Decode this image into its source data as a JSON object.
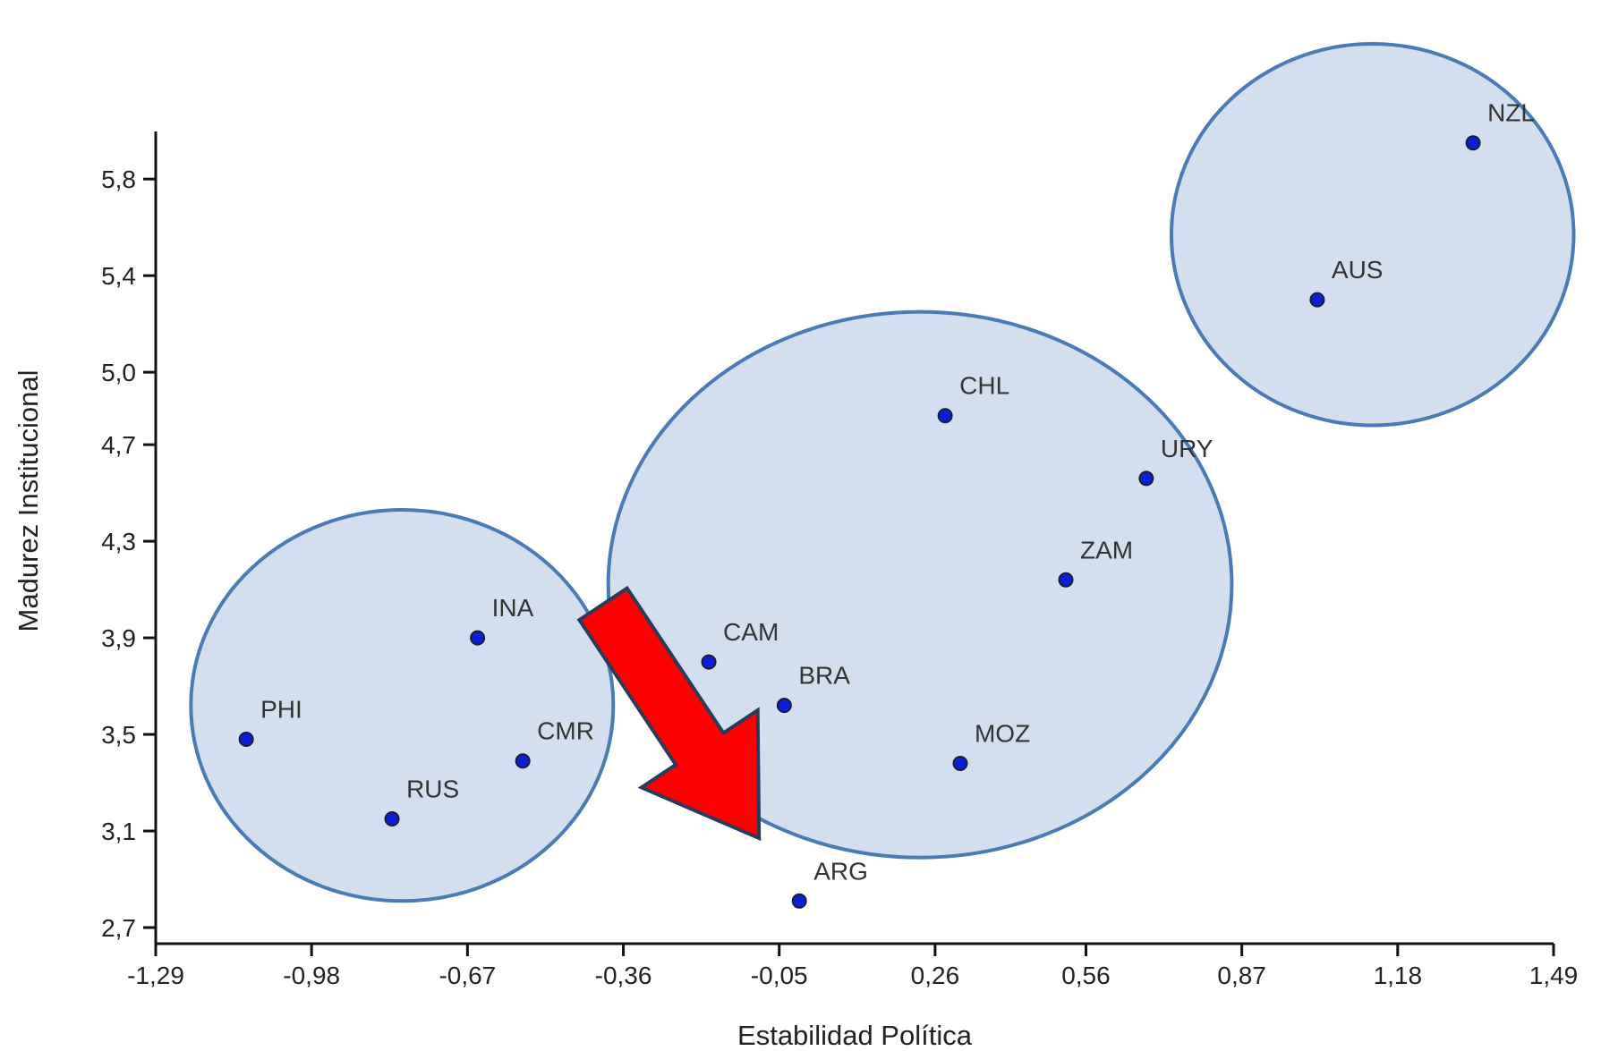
{
  "chart_data": {
    "type": "scatter",
    "xlabel": "Estabilidad Política",
    "ylabel": "Madurez Institucional",
    "xlim": [
      -1.29,
      1.49
    ],
    "ylim": [
      2.7,
      5.96
    ],
    "x_ticks": [
      "-1,29",
      "-0,98",
      "-0,67",
      "-0,36",
      "-0,05",
      "0,26",
      "0,56",
      "0,87",
      "1,18",
      "1,49"
    ],
    "x_tick_values": [
      -1.29,
      -0.98,
      -0.67,
      -0.36,
      -0.05,
      0.26,
      0.56,
      0.87,
      1.18,
      1.49
    ],
    "y_ticks": [
      "2,7",
      "3,1",
      "3,5",
      "3,9",
      "4,3",
      "4,7",
      "5,0",
      "5,4",
      "5,8"
    ],
    "y_tick_values": [
      2.7,
      3.1,
      3.5,
      3.9,
      4.3,
      4.7,
      5.0,
      5.4,
      5.8
    ],
    "grid": false,
    "points": [
      {
        "label": "NZL",
        "x": 1.33,
        "y": 5.95
      },
      {
        "label": "AUS",
        "x": 1.02,
        "y": 5.3
      },
      {
        "label": "CHL",
        "x": 0.28,
        "y": 4.82
      },
      {
        "label": "URY",
        "x": 0.68,
        "y": 4.56
      },
      {
        "label": "ZAM",
        "x": 0.52,
        "y": 4.14
      },
      {
        "label": "INA",
        "x": -0.65,
        "y": 3.9
      },
      {
        "label": "CAM",
        "x": -0.19,
        "y": 3.8
      },
      {
        "label": "BRA",
        "x": -0.04,
        "y": 3.62
      },
      {
        "label": "PHI",
        "x": -1.11,
        "y": 3.48
      },
      {
        "label": "CMR",
        "x": -0.56,
        "y": 3.39
      },
      {
        "label": "MOZ",
        "x": 0.31,
        "y": 3.38
      },
      {
        "label": "RUS",
        "x": -0.82,
        "y": 3.15
      },
      {
        "label": "ARG",
        "x": -0.01,
        "y": 2.81
      }
    ],
    "clusters": [
      {
        "members": [
          "NZL",
          "AUS"
        ],
        "cx": 1.13,
        "cy": 5.57,
        "rx": 0.4,
        "ry": 0.79
      },
      {
        "members": [
          "CHL",
          "URY",
          "ZAM",
          "CAM",
          "BRA",
          "MOZ"
        ],
        "cx": 0.23,
        "cy": 4.12,
        "rx": 0.62,
        "ry": 1.13
      },
      {
        "members": [
          "INA",
          "PHI",
          "CMR",
          "RUS"
        ],
        "cx": -0.8,
        "cy": 3.62,
        "rx": 0.42,
        "ry": 0.81
      }
    ],
    "arrow": {
      "from": {
        "x": -0.4,
        "y": 4.04
      },
      "to": {
        "x": -0.09,
        "y": 3.07
      }
    },
    "colors": {
      "point": "#0a1fd6",
      "point_stroke": "#1a1a3a",
      "cluster_fill": "#d3dfee",
      "cluster_stroke": "#4a7bb5",
      "arrow_fill": "#ff0000",
      "arrow_stroke": "#2a3a5a",
      "axis": "#111111"
    }
  }
}
